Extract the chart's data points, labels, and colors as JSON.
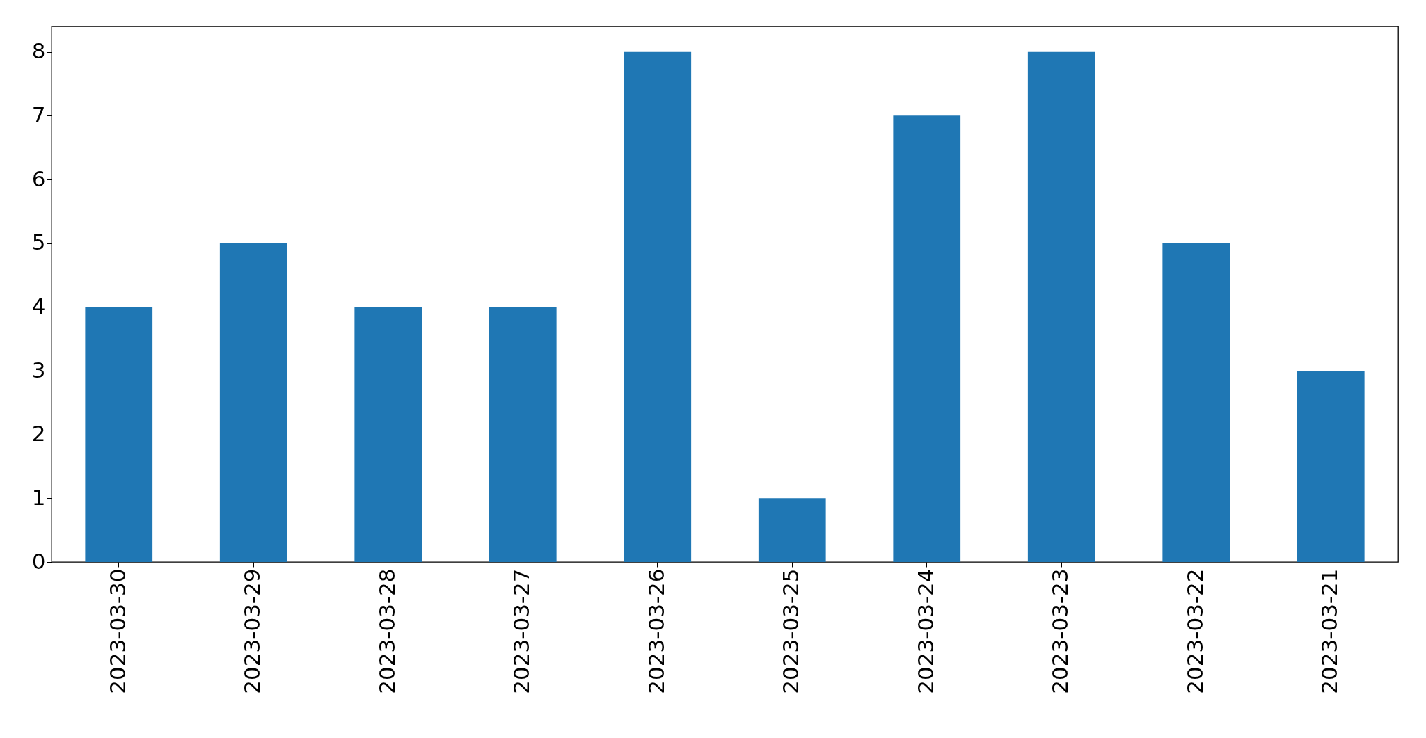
{
  "chart_data": {
    "type": "bar",
    "categories": [
      "2023-03-30",
      "2023-03-29",
      "2023-03-28",
      "2023-03-27",
      "2023-03-26",
      "2023-03-25",
      "2023-03-24",
      "2023-03-23",
      "2023-03-22",
      "2023-03-21"
    ],
    "values": [
      4,
      5,
      4,
      4,
      8,
      1,
      7,
      8,
      5,
      3
    ],
    "color": "#1f77b4",
    "ylim": [
      0,
      8.4
    ],
    "yticks": [
      0,
      1,
      2,
      3,
      4,
      5,
      6,
      7,
      8
    ],
    "grid": false
  }
}
